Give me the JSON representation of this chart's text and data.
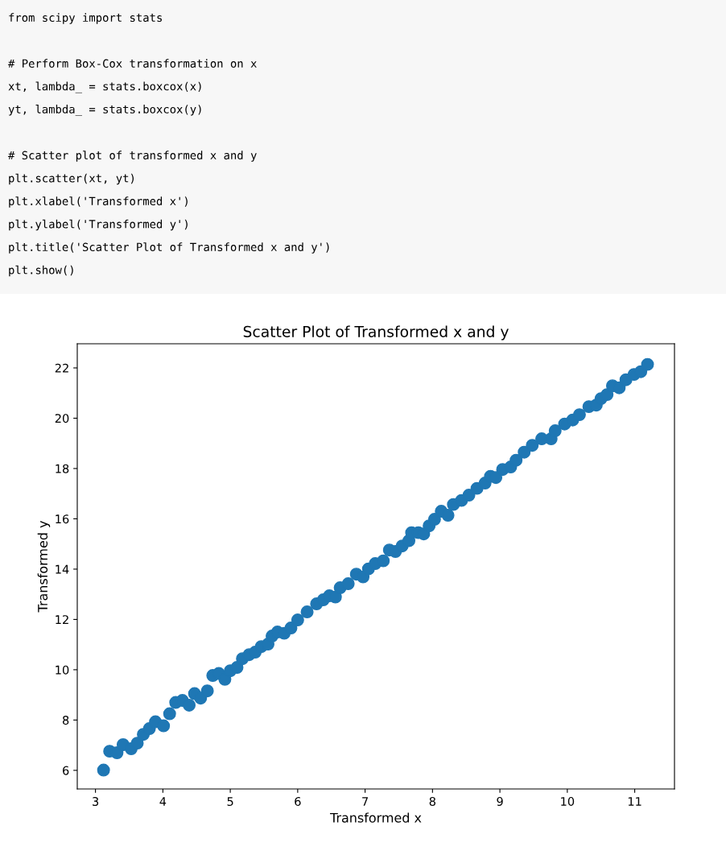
{
  "chart_data": {
    "type": "scatter",
    "title": "Scatter Plot of Transformed x and y",
    "xlabel": "Transformed x",
    "ylabel": "Transformed y",
    "annotations": [
      "from scipy import stats\n\n# Perform Box-Cox transformation on x\nxt, lambda_ = stats.boxcox(x)\nyt, lambda_ = stats.boxcox(y)\n\n# Scatter plot of transformed x and y\nplt.scatter(xt, yt)\nplt.xlabel('Transformed x')\nplt.ylabel('Transformed y')\nplt.title('Scatter Plot of Transformed x and y')\nplt.show()"
    ],
    "x": [
      3.12,
      3.21,
      3.32,
      3.41,
      3.53,
      3.62,
      3.71,
      3.8,
      3.89,
      4.01,
      4.1,
      4.19,
      4.29,
      4.39,
      4.47,
      4.56,
      4.66,
      4.74,
      4.83,
      4.92,
      5.0,
      5.1,
      5.18,
      5.28,
      5.37,
      5.46,
      5.56,
      5.62,
      5.7,
      5.8,
      5.9,
      6.0,
      6.14,
      6.28,
      6.38,
      6.47,
      6.56,
      6.63,
      6.75,
      6.87,
      6.97,
      7.05,
      7.15,
      7.27,
      7.36,
      7.45,
      7.55,
      7.65,
      7.69,
      7.79,
      7.87,
      7.95,
      8.03,
      8.13,
      8.23,
      8.31,
      8.43,
      8.54,
      8.66,
      8.78,
      8.86,
      8.94,
      9.04,
      9.16,
      9.24,
      9.36,
      9.48,
      9.62,
      9.76,
      9.82,
      9.96,
      10.08,
      10.18,
      10.32,
      10.43,
      10.5,
      10.59,
      10.67,
      10.77,
      10.87,
      10.99,
      11.09,
      11.19
    ],
    "series": [
      {
        "color": "#1f77b4",
        "values": [
          6.01,
          6.76,
          6.7,
          7.02,
          6.86,
          7.08,
          7.43,
          7.66,
          7.93,
          7.77,
          8.25,
          8.7,
          8.78,
          8.59,
          9.05,
          8.87,
          9.16,
          9.77,
          9.85,
          9.62,
          9.96,
          10.09,
          10.44,
          10.6,
          10.7,
          10.92,
          11.02,
          11.34,
          11.5,
          11.45,
          11.66,
          11.98,
          12.3,
          12.62,
          12.78,
          12.94,
          12.89,
          13.26,
          13.42,
          13.8,
          13.69,
          14.01,
          14.22,
          14.33,
          14.76,
          14.7,
          14.92,
          15.13,
          15.45,
          15.45,
          15.4,
          15.72,
          15.98,
          16.3,
          16.14,
          16.57,
          16.73,
          16.94,
          17.21,
          17.42,
          17.69,
          17.64,
          17.96,
          18.06,
          18.33,
          18.65,
          18.92,
          19.18,
          19.18,
          19.5,
          19.77,
          19.93,
          20.14,
          20.46,
          20.52,
          20.78,
          20.94,
          21.29,
          21.21,
          21.53,
          21.74,
          21.85,
          22.14
        ]
      }
    ],
    "xlim": [
      2.73,
      11.59
    ],
    "ylim": [
      5.26,
      22.96
    ],
    "xticks": [
      3,
      4,
      5,
      6,
      7,
      8,
      9,
      10,
      11
    ],
    "yticks": [
      6,
      8,
      10,
      12,
      14,
      16,
      18,
      20,
      22
    ],
    "marker": "circle",
    "grid": false,
    "legend": false
  }
}
